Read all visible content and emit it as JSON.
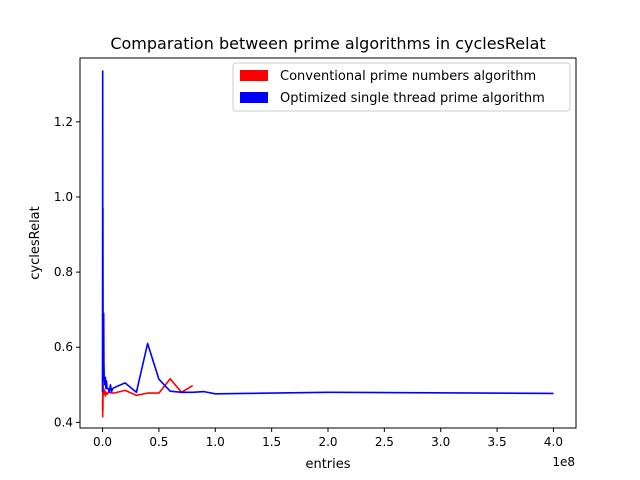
{
  "chart_data": {
    "type": "line",
    "title": "Comparation between prime algorithms in cyclesRelat",
    "xlabel": "entries",
    "ylabel": "cyclesRelat",
    "x_offset_label": "1e8",
    "xlim": [
      -0.2,
      4.2
    ],
    "ylim": [
      0.385,
      1.37
    ],
    "x_ticks": [
      0.0,
      0.5,
      1.0,
      1.5,
      2.0,
      2.5,
      3.0,
      3.5,
      4.0
    ],
    "x_tick_labels": [
      "0.0",
      "0.5",
      "1.0",
      "1.5",
      "2.0",
      "2.5",
      "3.0",
      "3.5",
      "4.0"
    ],
    "y_ticks": [
      0.4,
      0.6,
      0.8,
      1.0,
      1.2
    ],
    "y_tick_labels": [
      "0.4",
      "0.6",
      "0.8",
      "1.0",
      "1.2"
    ],
    "grid": false,
    "legend_position": "top-right",
    "series": [
      {
        "name": "Conventional prime numbers algorithm",
        "color": "#ff0000",
        "x": [
          0.0,
          0.001,
          0.002,
          0.003,
          0.005,
          0.008,
          0.01,
          0.012,
          0.015,
          0.02,
          0.025,
          0.03,
          0.04,
          0.05,
          0.06,
          0.08,
          0.1,
          0.2,
          0.3,
          0.4,
          0.5,
          0.6,
          0.7,
          0.8
        ],
        "y": [
          0.46,
          0.415,
          0.62,
          0.43,
          0.5,
          0.48,
          0.49,
          0.475,
          0.48,
          0.485,
          0.47,
          0.48,
          0.475,
          0.48,
          0.48,
          0.478,
          0.478,
          0.485,
          0.472,
          0.478,
          0.478,
          0.516,
          0.48,
          0.498
        ]
      },
      {
        "name": "Optimized single thread prime algorithm",
        "color": "#0000ff",
        "x": [
          0.0,
          0.001,
          0.002,
          0.003,
          0.005,
          0.008,
          0.01,
          0.012,
          0.015,
          0.02,
          0.025,
          0.03,
          0.035,
          0.04,
          0.05,
          0.06,
          0.07,
          0.08,
          0.09,
          0.1,
          0.2,
          0.3,
          0.4,
          0.5,
          0.6,
          0.7,
          0.8,
          0.9,
          1.0,
          2.0,
          4.0
        ],
        "y": [
          0.48,
          1.335,
          0.5,
          0.97,
          0.55,
          0.62,
          0.69,
          0.56,
          0.52,
          0.5,
          0.52,
          0.49,
          0.51,
          0.49,
          0.49,
          0.48,
          0.5,
          0.482,
          0.49,
          0.492,
          0.505,
          0.48,
          0.61,
          0.515,
          0.483,
          0.48,
          0.48,
          0.482,
          0.476,
          0.48,
          0.477
        ]
      }
    ]
  }
}
